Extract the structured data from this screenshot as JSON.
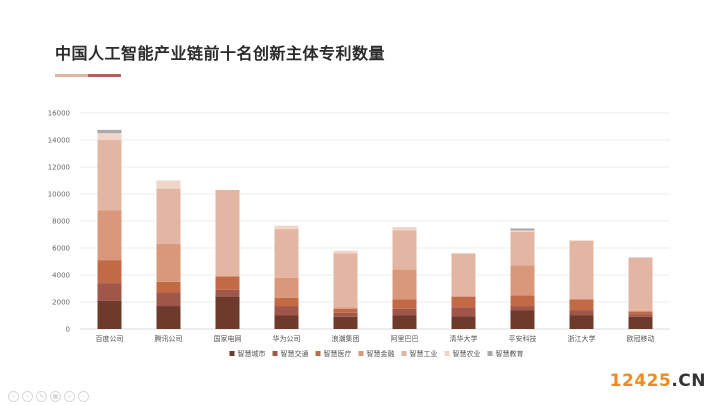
{
  "title": "中国人工智能产业链前十名创新主体专利数量",
  "colors": {
    "accent_light": "#dcb7a3",
    "accent_dark": "#a5645a"
  },
  "chart_data": {
    "type": "bar",
    "stacked": true,
    "categories": [
      "百度公司",
      "腾讯公司",
      "国家电网",
      "华为公司",
      "浪潮集团",
      "阿里巴巴",
      "清华大学",
      "平安科技",
      "浙江大学",
      "欧冠移动"
    ],
    "ylim": [
      0,
      16000
    ],
    "yticks": [
      0,
      2000,
      4000,
      6000,
      8000,
      10000,
      12000,
      14000,
      16000
    ],
    "grid": true,
    "legend_position": "bottom",
    "series": [
      {
        "name": "智慧城市",
        "color": "#6e3a2c",
        "values": [
          2100,
          1700,
          2400,
          1000,
          900,
          1000,
          950,
          1400,
          1000,
          900
        ]
      },
      {
        "name": "智慧交通",
        "color": "#a0574a",
        "values": [
          1300,
          1000,
          500,
          700,
          300,
          500,
          650,
          300,
          400,
          200
        ]
      },
      {
        "name": "智慧医疗",
        "color": "#c26a45",
        "values": [
          1700,
          800,
          1000,
          600,
          300,
          700,
          800,
          800,
          800,
          200
        ]
      },
      {
        "name": "智慧金融",
        "color": "#d9987a",
        "values": [
          3700,
          2800,
          0,
          1500,
          100,
          2200,
          0,
          2200,
          0,
          0
        ]
      },
      {
        "name": "智慧工业",
        "color": "#e3b5a3",
        "values": [
          5200,
          4100,
          6400,
          3600,
          4000,
          2900,
          3200,
          2500,
          4350,
          4000
        ]
      },
      {
        "name": "智慧农业",
        "color": "#efd5ca",
        "values": [
          500,
          600,
          0,
          250,
          200,
          250,
          0,
          100,
          0,
          0
        ]
      },
      {
        "name": "智慧教育",
        "color": "#a9a9a9",
        "values": [
          250,
          0,
          0,
          0,
          0,
          0,
          0,
          150,
          0,
          0
        ]
      }
    ]
  },
  "watermark": {
    "number": "12425",
    "dot": ".",
    "suffix": "CN"
  },
  "toolbar_icons": [
    "prev-icon",
    "next-icon",
    "pen-icon",
    "grid-icon",
    "search-icon",
    "more-icon"
  ]
}
